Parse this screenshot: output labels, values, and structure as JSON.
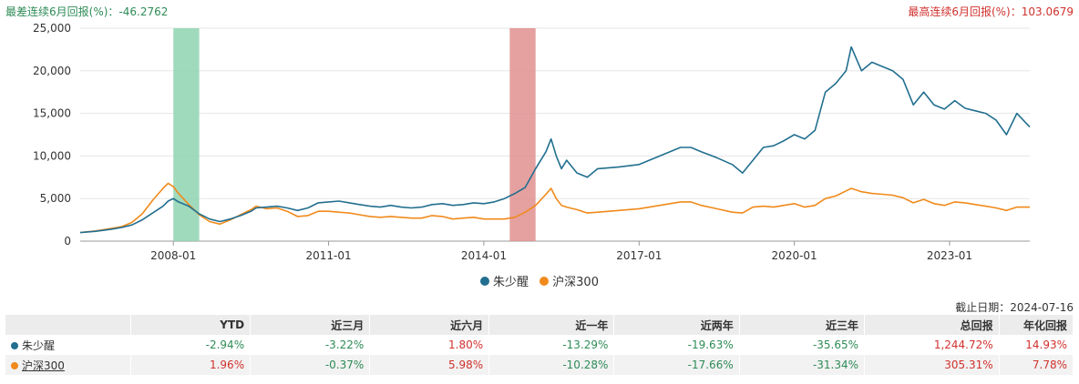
{
  "header": {
    "left": "最差连续6月回报(%)：-46.2762",
    "right": "最高连续6月回报(%)：103.0679"
  },
  "chart_data": {
    "type": "line",
    "y_ticks": [
      "25,000",
      "20,000",
      "15,000",
      "10,000",
      "5,000",
      "0"
    ],
    "y_tick_values": [
      25000,
      20000,
      15000,
      10000,
      5000,
      0
    ],
    "ylim": [
      0,
      25000
    ],
    "x_ticks": [
      "2008-01",
      "2011-01",
      "2014-01",
      "2017-01",
      "2020-01",
      "2023-01"
    ],
    "x_tick_values": [
      2008.0,
      2011.0,
      2014.0,
      2017.0,
      2020.0,
      2023.0
    ],
    "xlim": [
      2006.2,
      2024.55
    ],
    "shaded_periods": [
      {
        "start": 2008.0,
        "end": 2008.5,
        "color": "#8fd3b0",
        "label": "最差连续6月"
      },
      {
        "start": 2014.5,
        "end": 2015.0,
        "color": "#e08f8f",
        "label": "最高连续6月"
      }
    ],
    "series": [
      {
        "name": "朱少醒",
        "color": "#226f8f",
        "points": [
          [
            2006.2,
            1000
          ],
          [
            2006.5,
            1150
          ],
          [
            2006.8,
            1400
          ],
          [
            2007.0,
            1600
          ],
          [
            2007.2,
            1900
          ],
          [
            2007.4,
            2500
          ],
          [
            2007.6,
            3300
          ],
          [
            2007.8,
            4100
          ],
          [
            2007.9,
            4700
          ],
          [
            2008.0,
            5000
          ],
          [
            2008.1,
            4600
          ],
          [
            2008.3,
            4100
          ],
          [
            2008.5,
            3200
          ],
          [
            2008.7,
            2600
          ],
          [
            2008.9,
            2300
          ],
          [
            2009.1,
            2600
          ],
          [
            2009.3,
            3000
          ],
          [
            2009.5,
            3500
          ],
          [
            2009.6,
            3900
          ],
          [
            2009.8,
            4000
          ],
          [
            2010.0,
            4100
          ],
          [
            2010.2,
            3900
          ],
          [
            2010.4,
            3600
          ],
          [
            2010.6,
            3900
          ],
          [
            2010.8,
            4500
          ],
          [
            2011.0,
            4600
          ],
          [
            2011.2,
            4700
          ],
          [
            2011.4,
            4500
          ],
          [
            2011.6,
            4300
          ],
          [
            2011.8,
            4100
          ],
          [
            2012.0,
            4000
          ],
          [
            2012.2,
            4200
          ],
          [
            2012.4,
            4000
          ],
          [
            2012.6,
            3900
          ],
          [
            2012.8,
            4000
          ],
          [
            2013.0,
            4300
          ],
          [
            2013.2,
            4400
          ],
          [
            2013.4,
            4200
          ],
          [
            2013.6,
            4300
          ],
          [
            2013.8,
            4500
          ],
          [
            2014.0,
            4400
          ],
          [
            2014.2,
            4600
          ],
          [
            2014.4,
            5000
          ],
          [
            2014.6,
            5600
          ],
          [
            2014.8,
            6300
          ],
          [
            2015.0,
            8500
          ],
          [
            2015.2,
            10500
          ],
          [
            2015.3,
            12000
          ],
          [
            2015.4,
            10000
          ],
          [
            2015.5,
            8500
          ],
          [
            2015.6,
            9500
          ],
          [
            2015.8,
            8000
          ],
          [
            2016.0,
            7500
          ],
          [
            2016.2,
            8500
          ],
          [
            2016.6,
            8700
          ],
          [
            2017.0,
            9000
          ],
          [
            2017.4,
            10000
          ],
          [
            2017.8,
            11000
          ],
          [
            2018.0,
            11000
          ],
          [
            2018.2,
            10500
          ],
          [
            2018.5,
            9800
          ],
          [
            2018.8,
            9000
          ],
          [
            2019.0,
            8000
          ],
          [
            2019.2,
            9500
          ],
          [
            2019.4,
            11000
          ],
          [
            2019.6,
            11200
          ],
          [
            2019.8,
            11800
          ],
          [
            2020.0,
            12500
          ],
          [
            2020.2,
            12000
          ],
          [
            2020.4,
            13000
          ],
          [
            2020.6,
            17500
          ],
          [
            2020.8,
            18500
          ],
          [
            2021.0,
            20000
          ],
          [
            2021.1,
            22800
          ],
          [
            2021.3,
            20000
          ],
          [
            2021.5,
            21000
          ],
          [
            2021.7,
            20500
          ],
          [
            2021.9,
            20000
          ],
          [
            2022.1,
            19000
          ],
          [
            2022.3,
            16000
          ],
          [
            2022.5,
            17500
          ],
          [
            2022.7,
            16000
          ],
          [
            2022.9,
            15500
          ],
          [
            2023.1,
            16500
          ],
          [
            2023.3,
            15600
          ],
          [
            2023.5,
            15300
          ],
          [
            2023.7,
            15000
          ],
          [
            2023.9,
            14200
          ],
          [
            2024.1,
            12500
          ],
          [
            2024.3,
            15000
          ],
          [
            2024.55,
            13400
          ]
        ]
      },
      {
        "name": "沪深300",
        "color": "#f08a1c",
        "points": [
          [
            2006.2,
            1000
          ],
          [
            2006.5,
            1200
          ],
          [
            2006.8,
            1500
          ],
          [
            2007.0,
            1700
          ],
          [
            2007.2,
            2200
          ],
          [
            2007.4,
            3200
          ],
          [
            2007.6,
            4800
          ],
          [
            2007.8,
            6200
          ],
          [
            2007.9,
            6800
          ],
          [
            2008.0,
            6400
          ],
          [
            2008.1,
            5600
          ],
          [
            2008.3,
            4300
          ],
          [
            2008.5,
            3100
          ],
          [
            2008.7,
            2300
          ],
          [
            2008.9,
            2000
          ],
          [
            2009.1,
            2500
          ],
          [
            2009.3,
            3100
          ],
          [
            2009.5,
            3700
          ],
          [
            2009.6,
            4100
          ],
          [
            2009.8,
            3800
          ],
          [
            2010.0,
            3900
          ],
          [
            2010.2,
            3500
          ],
          [
            2010.4,
            2900
          ],
          [
            2010.6,
            3000
          ],
          [
            2010.8,
            3500
          ],
          [
            2011.0,
            3500
          ],
          [
            2011.2,
            3400
          ],
          [
            2011.4,
            3300
          ],
          [
            2011.6,
            3100
          ],
          [
            2011.8,
            2900
          ],
          [
            2012.0,
            2800
          ],
          [
            2012.2,
            2900
          ],
          [
            2012.4,
            2800
          ],
          [
            2012.6,
            2700
          ],
          [
            2012.8,
            2700
          ],
          [
            2013.0,
            3000
          ],
          [
            2013.2,
            2900
          ],
          [
            2013.4,
            2600
          ],
          [
            2013.6,
            2700
          ],
          [
            2013.8,
            2800
          ],
          [
            2014.0,
            2600
          ],
          [
            2014.2,
            2600
          ],
          [
            2014.4,
            2600
          ],
          [
            2014.6,
            2800
          ],
          [
            2014.8,
            3400
          ],
          [
            2015.0,
            4200
          ],
          [
            2015.2,
            5500
          ],
          [
            2015.3,
            6200
          ],
          [
            2015.4,
            5000
          ],
          [
            2015.5,
            4200
          ],
          [
            2015.6,
            4000
          ],
          [
            2015.8,
            3700
          ],
          [
            2016.0,
            3300
          ],
          [
            2016.2,
            3400
          ],
          [
            2016.6,
            3600
          ],
          [
            2017.0,
            3800
          ],
          [
            2017.4,
            4200
          ],
          [
            2017.8,
            4600
          ],
          [
            2018.0,
            4600
          ],
          [
            2018.2,
            4200
          ],
          [
            2018.5,
            3800
          ],
          [
            2018.8,
            3400
          ],
          [
            2019.0,
            3300
          ],
          [
            2019.2,
            4000
          ],
          [
            2019.4,
            4100
          ],
          [
            2019.6,
            4000
          ],
          [
            2019.8,
            4200
          ],
          [
            2020.0,
            4400
          ],
          [
            2020.2,
            4000
          ],
          [
            2020.4,
            4200
          ],
          [
            2020.6,
            5000
          ],
          [
            2020.8,
            5300
          ],
          [
            2021.0,
            5900
          ],
          [
            2021.1,
            6200
          ],
          [
            2021.3,
            5800
          ],
          [
            2021.5,
            5600
          ],
          [
            2021.7,
            5500
          ],
          [
            2021.9,
            5400
          ],
          [
            2022.1,
            5100
          ],
          [
            2022.3,
            4500
          ],
          [
            2022.5,
            4900
          ],
          [
            2022.7,
            4400
          ],
          [
            2022.9,
            4200
          ],
          [
            2023.1,
            4600
          ],
          [
            2023.3,
            4500
          ],
          [
            2023.5,
            4300
          ],
          [
            2023.7,
            4100
          ],
          [
            2023.9,
            3900
          ],
          [
            2024.1,
            3600
          ],
          [
            2024.3,
            4000
          ],
          [
            2024.55,
            4000
          ]
        ]
      }
    ]
  },
  "legend": [
    {
      "label": "朱少醒",
      "color": "#226f8f"
    },
    {
      "label": "沪深300",
      "color": "#f08a1c"
    }
  ],
  "as_of": "截止日期：2024-07-16",
  "table": {
    "columns": [
      "",
      "YTD",
      "近三月",
      "近六月",
      "近一年",
      "近两年",
      "近三年",
      "总回报",
      "年化回报"
    ],
    "rows": [
      {
        "name": "朱少醒",
        "color": "#226f8f",
        "values": [
          "-2.94%",
          "-3.22%",
          "1.80%",
          "-13.29%",
          "-19.63%",
          "-35.65%",
          "1,244.72%",
          "14.93%"
        ]
      },
      {
        "name": "沪深300",
        "color": "#f08a1c",
        "values": [
          "1.96%",
          "-0.37%",
          "5.98%",
          "-10.28%",
          "-17.66%",
          "-31.34%",
          "305.31%",
          "7.78%"
        ]
      }
    ]
  },
  "colors": {
    "positive": "#d0312d",
    "negative": "#2e8b57",
    "grid": "#e6e6e6"
  }
}
